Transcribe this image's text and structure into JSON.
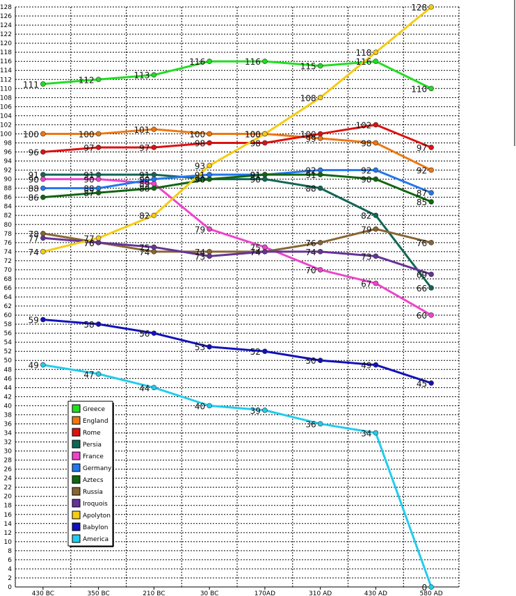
{
  "chart_data": {
    "type": "line",
    "categories": [
      "430 BC",
      "350 BC",
      "210 BC",
      "30 BC",
      "170AD",
      "310 AD",
      "430 AD",
      "580 AD"
    ],
    "ylim": [
      0,
      128
    ],
    "ytick_step": 2,
    "grid": true,
    "legend_position": "bottom-left",
    "series": [
      {
        "name": "Greece",
        "color": "#22dd22",
        "values": [
          111,
          112,
          113,
          116,
          116,
          115,
          116,
          110
        ]
      },
      {
        "name": "England",
        "color": "#ee7711",
        "values": [
          100,
          100,
          101,
          100,
          100,
          99,
          98,
          92
        ]
      },
      {
        "name": "Rome",
        "color": "#dd1111",
        "values": [
          96,
          97,
          97,
          98,
          98,
          100,
          102,
          97
        ]
      },
      {
        "name": "Persia",
        "color": "#116655",
        "values": [
          91,
          91,
          91,
          90,
          90,
          88,
          82,
          66
        ]
      },
      {
        "name": "France",
        "color": "#ee44cc",
        "values": [
          90,
          90,
          89,
          79,
          75,
          70,
          67,
          60
        ]
      },
      {
        "name": "Germany",
        "color": "#2277ee",
        "values": [
          88,
          88,
          90,
          91,
          91,
          92,
          92,
          87
        ]
      },
      {
        "name": "Aztecs",
        "color": "#116611",
        "values": [
          86,
          87,
          88,
          90,
          91,
          91,
          90,
          85
        ]
      },
      {
        "name": "Russia",
        "color": "#886633",
        "values": [
          78,
          76,
          74,
          74,
          74,
          76,
          79,
          76
        ]
      },
      {
        "name": "Iroquois",
        "color": "#663399",
        "values": [
          77,
          76,
          75,
          73,
          74,
          74,
          73,
          69
        ]
      },
      {
        "name": "Apolyton",
        "color": "#f5cc11",
        "values": [
          74,
          77,
          82,
          93,
          100,
          108,
          118,
          128
        ]
      },
      {
        "name": "Babylon",
        "color": "#1111bb",
        "values": [
          59,
          58,
          56,
          53,
          52,
          50,
          49,
          45
        ]
      },
      {
        "name": "America",
        "color": "#22ccee",
        "values": [
          49,
          47,
          44,
          40,
          39,
          36,
          34,
          0
        ]
      }
    ]
  }
}
